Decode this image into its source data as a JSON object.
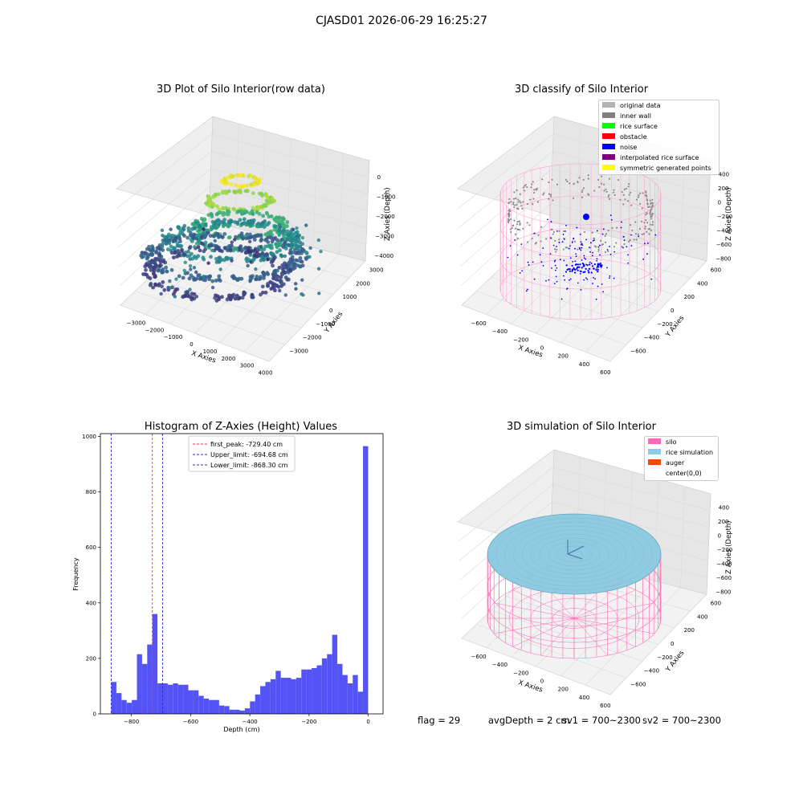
{
  "suptitle": "CJASD01 2026-06-29 16:25:27",
  "panels": {
    "raw": {
      "title": "3D Plot of Silo Interior(row data)",
      "xlabel": "X Axies",
      "ylabel": "Y Axies",
      "zlabel": "Z Axies (Depth)",
      "xticks": [
        "−3000",
        "−2000",
        "−1000",
        "0",
        "1000",
        "2000",
        "3000",
        "4000"
      ],
      "yticks": [
        "3000",
        "2000",
        "1000",
        "0",
        "−1000",
        "−2000",
        "−3000"
      ],
      "zticks": [
        "0",
        "−1000",
        "−2000",
        "−3000",
        "−4000"
      ]
    },
    "classify": {
      "title": "3D classify of Silo Interior",
      "xlabel": "X Axies",
      "ylabel": "Y Axies",
      "zlabel": "Z Axies (Depth)",
      "xticks": [
        "−600",
        "−400",
        "−200",
        "0",
        "200",
        "400",
        "600"
      ],
      "yticks": [
        "600",
        "400",
        "200",
        "0",
        "−200",
        "−400",
        "−600"
      ],
      "zticks": [
        "400",
        "200",
        "0",
        "−200",
        "−400",
        "−600",
        "−800"
      ],
      "legend": [
        {
          "label": "original data",
          "color": "#b3b3b3"
        },
        {
          "label": "inner wall",
          "color": "#808080"
        },
        {
          "label": "rice surface",
          "color": "#00ff00"
        },
        {
          "label": "obstacle",
          "color": "#ff0000"
        },
        {
          "label": "noise",
          "color": "#0000ff"
        },
        {
          "label": "interpolated rice surface",
          "color": "#800080"
        },
        {
          "label": "symmetric generated points",
          "color": "#ffff00"
        }
      ]
    },
    "simulation": {
      "title": "3D simulation of Silo Interior",
      "xlabel": "X Axies",
      "ylabel": "Y Axies",
      "zlabel": "Z Axies (Depth)",
      "xticks": [
        "−600",
        "−400",
        "−200",
        "0",
        "200",
        "400",
        "600"
      ],
      "yticks": [
        "600",
        "400",
        "200",
        "0",
        "−200",
        "−400",
        "−600"
      ],
      "zticks": [
        "400",
        "200",
        "0",
        "−200",
        "−400",
        "−600",
        "−800"
      ],
      "legend": [
        {
          "label": "silo",
          "color": "#ff69b4"
        },
        {
          "label": "rice simulation",
          "color": "#87ceeb"
        },
        {
          "label": "auger",
          "color": "#ff4500"
        },
        {
          "label": "center(0,0)",
          "color": "#ffffff"
        }
      ]
    }
  },
  "chart_data": [
    {
      "type": "heatmap",
      "title": "3D Plot of Silo Interior(row data)",
      "xlabel": "X Axies",
      "ylabel": "Y Axies",
      "zlabel": "Z Axies (Depth)",
      "xlim": [
        -3000,
        4000
      ],
      "ylim": [
        -3000,
        3000
      ],
      "zlim": [
        -4000,
        0
      ],
      "grid": true
    },
    {
      "type": "scatter",
      "title": "3D classify of Silo Interior",
      "xlabel": "X Axies",
      "ylabel": "Y Axies",
      "zlabel": "Z Axies (Depth)",
      "xlim": [
        -600,
        600
      ],
      "ylim": [
        -600,
        600
      ],
      "zlim": [
        -800,
        400
      ],
      "legend_position": "top-right",
      "grid": true
    },
    {
      "type": "bar",
      "title": "Histogram of Z-Axies (Height) Values",
      "xlabel": "Depth (cm)",
      "ylabel": "Frequency",
      "xlim": [
        -905,
        50
      ],
      "ylim": [
        0,
        1010
      ],
      "xticks": [
        -800,
        -600,
        -400,
        -200,
        0
      ],
      "yticks": [
        0,
        200,
        400,
        600,
        800,
        1000
      ],
      "bin_start": -868.3,
      "bin_width": 17.36,
      "values": [
        115,
        75,
        50,
        40,
        50,
        215,
        180,
        250,
        360,
        110,
        110,
        105,
        110,
        105,
        105,
        85,
        85,
        65,
        55,
        50,
        50,
        30,
        28,
        15,
        15,
        12,
        20,
        45,
        70,
        100,
        115,
        125,
        155,
        130,
        130,
        125,
        130,
        160,
        160,
        165,
        175,
        200,
        215,
        285,
        180,
        140,
        110,
        140,
        80,
        965
      ],
      "bar_color": "#4b4bf5",
      "vlines": [
        {
          "x": -729.4,
          "label": "first_peak: -729.40 cm",
          "color": "#e8363a"
        },
        {
          "x": -694.68,
          "label": "Upper_limit: -694.68 cm",
          "color": "#2b2bd6"
        },
        {
          "x": -868.3,
          "label": "Lower_limit: -868.30 cm",
          "color": "#2b2bd6"
        }
      ],
      "legend_position": "top-center"
    },
    {
      "type": "area",
      "title": "3D simulation of Silo Interior",
      "xlabel": "X Axies",
      "ylabel": "Y Axies",
      "zlabel": "Z Axies (Depth)",
      "xlim": [
        -600,
        600
      ],
      "ylim": [
        -600,
        600
      ],
      "zlim": [
        -800,
        400
      ],
      "legend_position": "top-right",
      "grid": true
    }
  ],
  "footer": {
    "flag": "flag = 29",
    "avg": "avgDepth = 2 cm",
    "sv1": "sv1 = 700~2300",
    "sv2": "sv2 = 700~2300"
  }
}
